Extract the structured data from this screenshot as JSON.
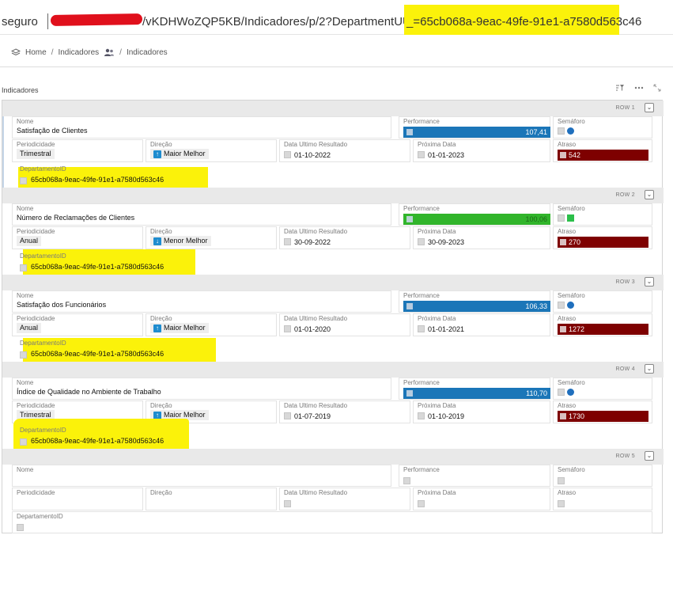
{
  "address_bar": {
    "security_label": "seguro",
    "path": "/vKDHWoZQP5KB/Indicadores/p/2?DepartmentUUID",
    "query_value": "_=65cb068a-9eac-49fe-91e1-a7580d563c46"
  },
  "breadcrumb": {
    "home": "Home",
    "middle": "Indicadores",
    "current": "Indicadores"
  },
  "section_title": "Indicadores",
  "labels": {
    "nome": "Nome",
    "performance": "Performance",
    "semaforo": "Semáforo",
    "periodicidade": "Periodicidade",
    "direcao": "Direção",
    "data_ultimo": "Data Ultimo Resultado",
    "proxima_data": "Próxima Data",
    "atraso": "Atraso",
    "departamento": "DepartamentoID"
  },
  "rows": [
    {
      "row_label": "ROW 1",
      "nome": "Satisfação de Clientes",
      "performance": "107,41",
      "performance_color": "#1b76b8",
      "semaforo_color": "#1f6fbd",
      "semaforo_shape": "dot",
      "periodicidade": "Trimestral",
      "direcao": "Maior Melhor",
      "direcao_icon": "arrow-up",
      "data_ultimo": "01-10-2022",
      "proxima_data": "01-01-2023",
      "atraso": "542",
      "departamento": "65cb068a-9eac-49fe-91e1-a7580d563c46"
    },
    {
      "row_label": "ROW 2",
      "nome": "Número de Reclamações de Clientes",
      "performance": "100,06",
      "performance_color": "#31b52b",
      "semaforo_color": "#2bbf4a",
      "semaforo_shape": "square",
      "periodicidade": "Anual",
      "direcao": "Menor Melhor",
      "direcao_icon": "arrow-down",
      "data_ultimo": "30-09-2022",
      "proxima_data": "30-09-2023",
      "atraso": "270",
      "departamento": "65cb068a-9eac-49fe-91e1-a7580d563c46"
    },
    {
      "row_label": "ROW 3",
      "nome": "Satisfação dos Funcionários",
      "performance": "106,33",
      "performance_color": "#1b76b8",
      "semaforo_color": "#1f6fbd",
      "semaforo_shape": "dot",
      "periodicidade": "Anual",
      "direcao": "Maior Melhor",
      "direcao_icon": "arrow-up",
      "data_ultimo": "01-01-2020",
      "proxima_data": "01-01-2021",
      "atraso": "1272",
      "departamento": "65cb068a-9eac-49fe-91e1-a7580d563c46"
    },
    {
      "row_label": "ROW 4",
      "nome": "Índice de Qualidade no Ambiente de Trabalho",
      "performance": "110,70",
      "performance_color": "#1b76b8",
      "semaforo_color": "#1f6fbd",
      "semaforo_shape": "dot",
      "periodicidade": "Trimestral",
      "direcao": "Maior Melhor",
      "direcao_icon": "arrow-up",
      "data_ultimo": "01-07-2019",
      "proxima_data": "01-10-2019",
      "atraso": "1730",
      "departamento": "65cb068a-9eac-49fe-91e1-a7580d563c46"
    },
    {
      "row_label": "ROW 5",
      "nome": "",
      "performance": "",
      "periodicidade": "",
      "direcao": "",
      "data_ultimo": "",
      "proxima_data": "",
      "atraso": "",
      "departamento": ""
    }
  ],
  "colors": {
    "highlight": "#fbf20a",
    "atraso": "#7e0000",
    "redaction": "#e0101c"
  }
}
